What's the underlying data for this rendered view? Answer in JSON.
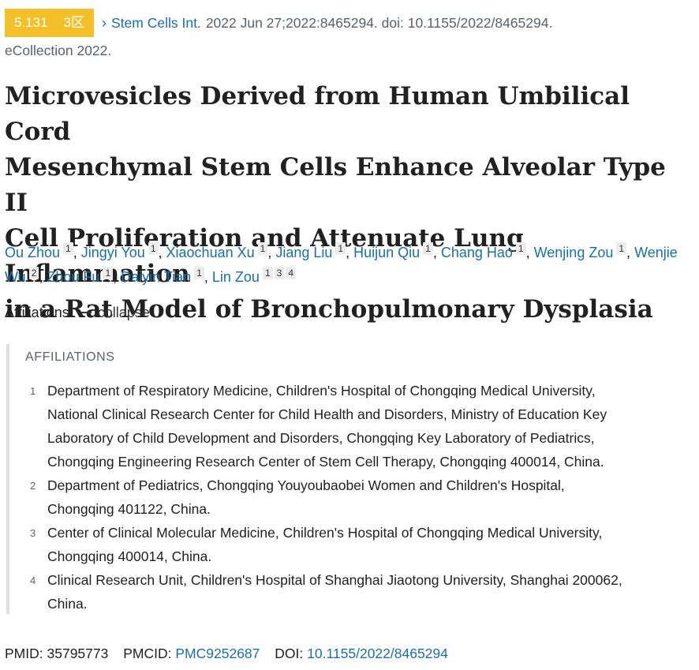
{
  "citation": {
    "impact_factor": "5.131",
    "tier": "3区",
    "journal": "Stem Cells Int.",
    "details": "2022 Jun 27;2022:8465294. doi: 10.1155/2022/8465294.",
    "ecollection": "eCollection 2022."
  },
  "title_lines": [
    "Microvesicles Derived from Human Umbilical Cord",
    "Mesenchymal Stem Cells Enhance Alveolar Type II",
    "Cell Proliferation and Attenuate Lung Inflammation",
    "in a Rat Model of Bronchopulmonary Dysplasia"
  ],
  "authors": [
    {
      "name": "Ou Zhou",
      "affs": [
        "1"
      ]
    },
    {
      "name": "Jingyi You",
      "affs": [
        "1"
      ]
    },
    {
      "name": "Xiaochuan Xu",
      "affs": [
        "1"
      ]
    },
    {
      "name": "Jiang Liu",
      "affs": [
        "1"
      ]
    },
    {
      "name": "Huijun Qiu",
      "affs": [
        "1"
      ]
    },
    {
      "name": "Chang Hao",
      "affs": [
        "1"
      ]
    },
    {
      "name": "Wenjing Zou",
      "affs": [
        "1"
      ]
    },
    {
      "name": "Wenjie Wu",
      "affs": [
        "2"
      ]
    },
    {
      "name": "Zhou Fu",
      "affs": [
        "1"
      ]
    },
    {
      "name": "Daiyin Tian",
      "affs": [
        "1"
      ]
    },
    {
      "name": "Lin Zou",
      "affs": [
        "1",
        "3",
        "4"
      ]
    }
  ],
  "affiliations_toggle": {
    "label": "Affiliations",
    "action": "collapse"
  },
  "affiliations": {
    "heading": "AFFILIATIONS",
    "items": [
      {
        "num": "1",
        "lines": [
          "Department of Respiratory Medicine, Children's Hospital of Chongqing Medical University,",
          "National Clinical Research Center for Child Health and Disorders, Ministry of Education Key",
          "Laboratory of Child Development and Disorders, Chongqing Key Laboratory of Pediatrics,",
          "Chongqing Engineering Research Center of Stem Cell Therapy, Chongqing 400014, China."
        ]
      },
      {
        "num": "2",
        "lines": [
          "Department of Pediatrics, Chongqing Youyoubaobei Women and Children's Hospital,",
          "Chongqing 401122, China."
        ]
      },
      {
        "num": "3",
        "lines": [
          "Center of Clinical Molecular Medicine, Children's Hospital of Chongqing Medical University,",
          "Chongqing 400014, China."
        ]
      },
      {
        "num": "4",
        "lines": [
          "Clinical Research Unit, Children's Hospital of Shanghai Jiaotong University, Shanghai 200062,",
          "China."
        ]
      }
    ]
  },
  "identifiers": {
    "pmid_label": "PMID:",
    "pmid": "35795773",
    "pmcid_label": "PMCID:",
    "pmcid": "PMC9252687",
    "doi_label": "DOI:",
    "doi": "10.1155/2022/8465294"
  },
  "colors": {
    "link": "#1a6fa8",
    "badge": "#f3c02a",
    "muted": "#5b616b"
  }
}
